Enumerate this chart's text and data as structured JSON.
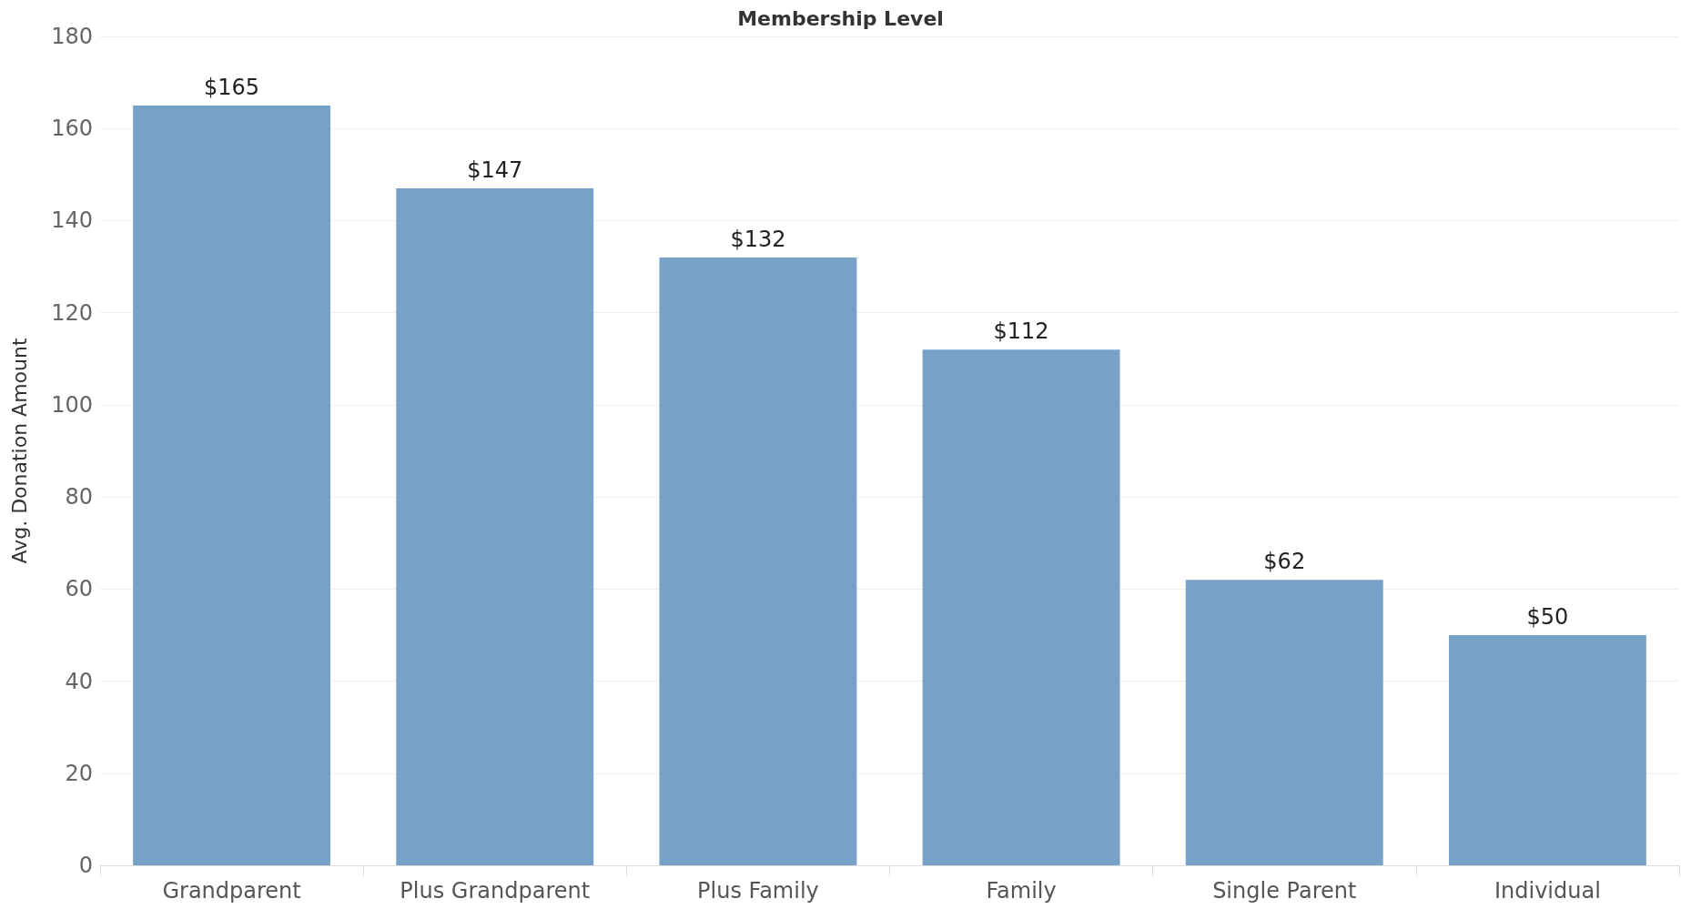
{
  "chart_data": {
    "type": "bar",
    "title": "Membership Level",
    "ylabel": "Avg. Donation Amount",
    "categories": [
      "Grandparent",
      "Plus Grandparent",
      "Plus Family",
      "Family",
      "Single Parent",
      "Individual"
    ],
    "values": [
      165,
      147,
      132,
      112,
      62,
      50
    ],
    "value_labels": [
      "$165",
      "$147",
      "$132",
      "$112",
      "$62",
      "$50"
    ],
    "color": "#77a1c6",
    "ylim": [
      0,
      180
    ],
    "yticks": [
      0,
      20,
      40,
      60,
      80,
      100,
      120,
      140,
      160,
      180
    ],
    "grid": "y"
  }
}
